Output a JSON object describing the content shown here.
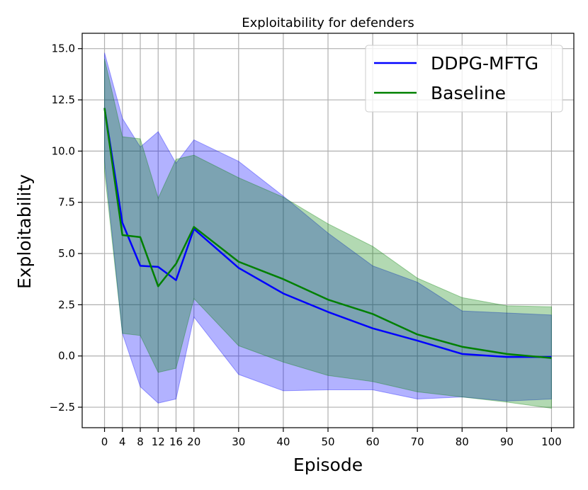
{
  "chart_data": {
    "type": "line",
    "title": "Exploitability for defenders",
    "xlabel": "Episode",
    "ylabel": "Exploitability",
    "xlim": [
      -5,
      105
    ],
    "ylim": [
      -3.5,
      15.75
    ],
    "x_ticks": [
      0,
      4,
      8,
      12,
      16,
      20,
      30,
      40,
      50,
      60,
      70,
      80,
      90,
      100
    ],
    "x_tick_labels": [
      "0",
      "4",
      "8",
      "12",
      "16",
      "20",
      "30",
      "40",
      "50",
      "60",
      "70",
      "80",
      "90",
      "100"
    ],
    "y_ticks": [
      -2.5,
      0,
      2.5,
      5,
      7.5,
      10,
      12.5,
      15
    ],
    "y_tick_labels": [
      "−2.5",
      "0.0",
      "2.5",
      "5.0",
      "7.5",
      "10.0",
      "12.5",
      "15.0"
    ],
    "grid": true,
    "legend_position": "top-right",
    "x": [
      0,
      4,
      8,
      12,
      16,
      20,
      30,
      40,
      50,
      60,
      70,
      80,
      90,
      100
    ],
    "series": [
      {
        "name": "DDPG-MFTG",
        "color": "#0000ff",
        "band_color": "#0000ff",
        "band_opacity": 0.3,
        "values": [
          12.1,
          6.5,
          4.4,
          4.35,
          3.7,
          6.2,
          4.3,
          3.05,
          2.15,
          1.35,
          0.75,
          0.1,
          -0.05,
          -0.05
        ],
        "upper": [
          14.8,
          11.6,
          10.2,
          10.95,
          9.4,
          10.55,
          9.5,
          7.8,
          6.0,
          4.4,
          3.6,
          2.2,
          2.1,
          2.0
        ],
        "lower": [
          9.5,
          1.1,
          -1.5,
          -2.3,
          -2.1,
          1.9,
          -0.9,
          -1.7,
          -1.65,
          -1.65,
          -2.1,
          -2.0,
          -2.2,
          -2.1
        ]
      },
      {
        "name": "Baseline",
        "color": "#008000",
        "band_color": "#008000",
        "band_opacity": 0.3,
        "values": [
          12.1,
          5.9,
          5.8,
          3.4,
          4.5,
          6.3,
          4.6,
          3.75,
          2.75,
          2.05,
          1.05,
          0.45,
          0.1,
          -0.1
        ],
        "upper": [
          14.5,
          10.7,
          10.6,
          7.7,
          9.6,
          9.8,
          8.7,
          7.75,
          6.45,
          5.35,
          3.8,
          2.85,
          2.45,
          2.4
        ],
        "lower": [
          9.0,
          1.1,
          1.0,
          -0.8,
          -0.6,
          2.8,
          0.5,
          -0.3,
          -0.95,
          -1.25,
          -1.75,
          -2.0,
          -2.25,
          -2.55
        ]
      }
    ]
  }
}
